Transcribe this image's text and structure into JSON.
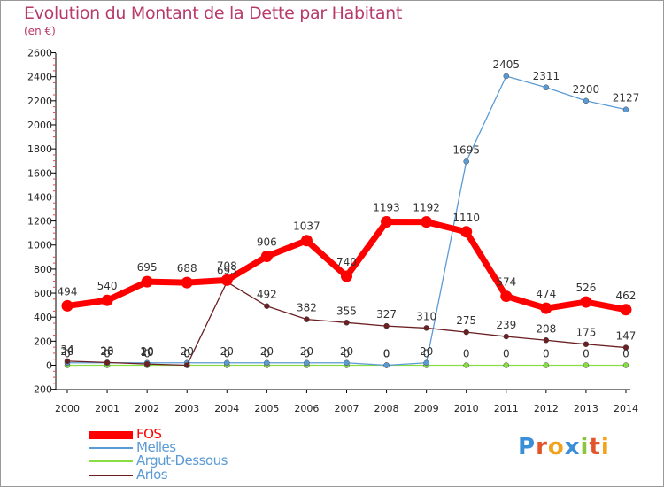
{
  "chart_data": {
    "type": "line",
    "title": "Evolution du Montant de la Dette par Habitant",
    "subtitle": "(en €)",
    "x": [
      "2000",
      "2001",
      "2002",
      "2003",
      "2004",
      "2005",
      "2006",
      "2007",
      "2008",
      "2009",
      "2010",
      "2011",
      "2012",
      "2013",
      "2014"
    ],
    "ylim": [
      -200,
      2600
    ],
    "yticks": [
      -200,
      0,
      200,
      400,
      600,
      800,
      1000,
      1200,
      1400,
      1600,
      1800,
      2000,
      2200,
      2400,
      2600
    ],
    "grid": false,
    "legend_position": "bottom-left",
    "series": [
      {
        "name": "FOS",
        "color": "#ff0000",
        "values": [
          494,
          540,
          695,
          688,
          708,
          906,
          1037,
          740,
          1193,
          1192,
          1110,
          574,
          474,
          526,
          462
        ]
      },
      {
        "name": "Melles",
        "color": "#5b9bd5",
        "values": [
          20,
          20,
          20,
          20,
          20,
          20,
          20,
          20,
          0,
          20,
          1695,
          2405,
          2311,
          2200,
          2127
        ]
      },
      {
        "name": "Argut-Dessous",
        "color": "#88dd44",
        "values": [
          0,
          0,
          0,
          0,
          0,
          0,
          0,
          0,
          0,
          0,
          0,
          0,
          0,
          0,
          0
        ]
      },
      {
        "name": "Arlos",
        "color": "#6b1f22",
        "values": [
          34,
          23,
          10,
          0,
          693,
          492,
          382,
          355,
          327,
          310,
          275,
          239,
          208,
          175,
          147
        ]
      }
    ]
  },
  "legend": {
    "fos": "FOS",
    "melles": "Melles",
    "argut": "Argut-Dessous",
    "arlos": "Arlos"
  },
  "logo": {
    "letters": [
      "P",
      "r",
      "o",
      "x",
      "i",
      "t",
      "i"
    ],
    "colors": [
      "#3a8fd8",
      "#e2552b",
      "#f2a21b",
      "#3a8fd8",
      "#8cc63f",
      "#e2552b",
      "#f2a21b"
    ]
  }
}
